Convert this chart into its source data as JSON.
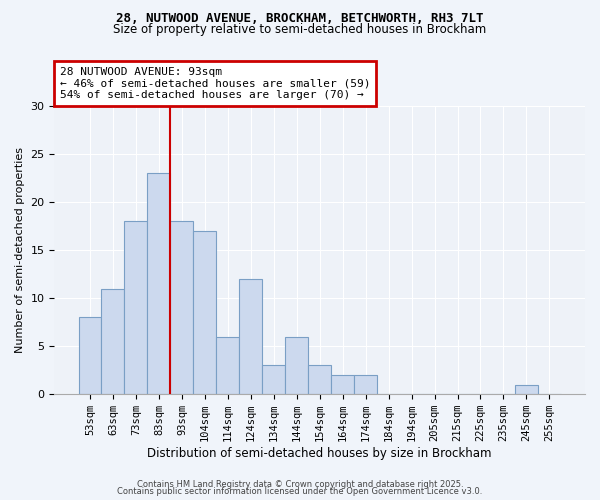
{
  "title1": "28, NUTWOOD AVENUE, BROCKHAM, BETCHWORTH, RH3 7LT",
  "title2": "Size of property relative to semi-detached houses in Brockham",
  "xlabel": "Distribution of semi-detached houses by size in Brockham",
  "ylabel": "Number of semi-detached properties",
  "categories": [
    "53sqm",
    "63sqm",
    "73sqm",
    "83sqm",
    "93sqm",
    "104sqm",
    "114sqm",
    "124sqm",
    "134sqm",
    "144sqm",
    "154sqm",
    "164sqm",
    "174sqm",
    "184sqm",
    "194sqm",
    "205sqm",
    "215sqm",
    "225sqm",
    "235sqm",
    "245sqm",
    "255sqm"
  ],
  "values": [
    8,
    11,
    18,
    23,
    18,
    17,
    6,
    12,
    3,
    6,
    3,
    2,
    2,
    0,
    0,
    0,
    0,
    0,
    0,
    1,
    0
  ],
  "highlight_index": 3,
  "bar_color": "#ccd9ee",
  "bar_edge_color": "#7a9fc5",
  "highlight_line_color": "#cc0000",
  "annotation_title": "28 NUTWOOD AVENUE: 93sqm",
  "annotation_line1": "← 46% of semi-detached houses are smaller (59)",
  "annotation_line2": "54% of semi-detached houses are larger (70) →",
  "annotation_box_color": "#cc0000",
  "ylim": [
    0,
    30
  ],
  "yticks": [
    0,
    5,
    10,
    15,
    20,
    25,
    30
  ],
  "footer1": "Contains HM Land Registry data © Crown copyright and database right 2025.",
  "footer2": "Contains public sector information licensed under the Open Government Licence v3.0.",
  "background_color": "#f0f4fa",
  "plot_background_color": "#eef2f8",
  "grid_color": "#ffffff"
}
